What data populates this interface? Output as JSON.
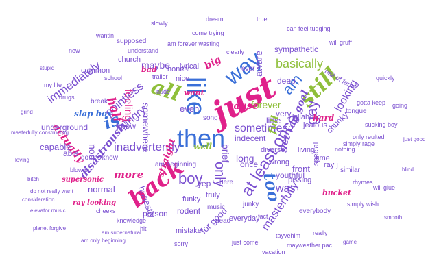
{
  "title": "",
  "words": [
    {
      "text": "just",
      "color": "#e0218a",
      "style": "c"
    },
    {
      "text": "like",
      "color": "#3a6fd8",
      "style": "s"
    },
    {
      "text": "then",
      "color": "#3a6fd8",
      "style": "s"
    },
    {
      "text": "all",
      "color": "#8fbf3a",
      "style": "c"
    },
    {
      "text": "way",
      "color": "#3a6fd8",
      "style": "s"
    },
    {
      "text": "back",
      "color": "#e0218a",
      "style": "c"
    },
    {
      "text": "still",
      "color": "#8fbf3a",
      "style": "c"
    },
    {
      "text": "at least once",
      "color": "#7a4fd0",
      "style": "s"
    },
    {
      "text": "boy",
      "color": "#7a4fd0",
      "style": "s"
    },
    {
      "text": "gay",
      "color": "#7a4fd0",
      "style": "s"
    },
    {
      "text": "only",
      "color": "#7a4fd0",
      "style": "s"
    },
    {
      "text": "too",
      "color": "#3a6fd8",
      "style": "c"
    },
    {
      "text": "am",
      "color": "#3a6fd8",
      "style": "s"
    },
    {
      "text": "basically",
      "color": "#8fbf3a",
      "style": "s"
    },
    {
      "text": "inadvertently",
      "color": "#7a4fd0",
      "style": "s"
    },
    {
      "text": "sometimes",
      "color": "#7a4fd0",
      "style": "s"
    },
    {
      "text": "masterfully",
      "color": "#7a4fd0",
      "style": "s"
    },
    {
      "text": "immediately",
      "color": "#7a4fd0",
      "style": "s"
    },
    {
      "text": "pointless",
      "color": "#7a4fd0",
      "style": "s"
    },
    {
      "text": "feeling",
      "color": "#e0218a",
      "style": "s"
    },
    {
      "text": "hungry",
      "color": "#7a4fd0",
      "style": "s"
    },
    {
      "text": "half",
      "color": "#e0218a",
      "style": "c"
    },
    {
      "text": "is",
      "color": "#3a6fd8",
      "style": "c"
    },
    {
      "text": "more",
      "color": "#e0218a",
      "style": "c"
    },
    {
      "text": "actually",
      "color": "#e0218a",
      "style": "c"
    },
    {
      "text": "disastrously",
      "color": "#7a4fd0",
      "style": "c"
    },
    {
      "text": "looking",
      "color": "#7a4fd0",
      "style": "s"
    },
    {
      "text": "was",
      "color": "#7a4fd0",
      "style": "s"
    },
    {
      "text": "get rag goal",
      "color": "#7a4fd0",
      "style": "c"
    },
    {
      "text": "forever",
      "color": "#8fbf3a",
      "style": "s"
    },
    {
      "text": "somewhere",
      "color": "#7a4fd0",
      "style": "s"
    },
    {
      "text": "maybe",
      "color": "#7a4fd0",
      "style": "s"
    },
    {
      "text": "for good",
      "color": "#7a4fd0",
      "style": "s"
    },
    {
      "text": "honestly",
      "color": "#7a4fd0",
      "style": "s"
    },
    {
      "text": "straight",
      "color": "#e0218a",
      "style": "c"
    },
    {
      "text": "normal",
      "color": "#7a4fd0",
      "style": "s"
    },
    {
      "text": "capable",
      "color": "#7a4fd0",
      "style": "s"
    },
    {
      "text": "underground",
      "color": "#7a4fd0",
      "style": "s"
    },
    {
      "text": "slap box",
      "color": "#3a6fd8",
      "style": "c"
    },
    {
      "text": "know",
      "color": "#7a4fd0",
      "style": "s"
    },
    {
      "text": "nod",
      "color": "#7a4fd0",
      "style": "s"
    },
    {
      "text": "able",
      "color": "#7a4fd0",
      "style": "s"
    },
    {
      "text": "even",
      "color": "#7a4fd0",
      "style": "s"
    },
    {
      "text": "person",
      "color": "#7a4fd0",
      "style": "s"
    },
    {
      "text": "youthful",
      "color": "#7a4fd0",
      "style": "s"
    },
    {
      "text": "front",
      "color": "#7a4fd0",
      "style": "s"
    },
    {
      "text": "indecent",
      "color": "#7a4fd0",
      "style": "s"
    },
    {
      "text": "very",
      "color": "#7a4fd0",
      "style": "s"
    },
    {
      "text": "little",
      "color": "#7a4fd0",
      "style": "s"
    },
    {
      "text": "killaholic",
      "color": "#7a4fd0",
      "style": "s"
    },
    {
      "text": "chunky",
      "color": "#7a4fd0",
      "style": "s"
    },
    {
      "text": "sympathetic",
      "color": "#7a4fd0",
      "style": "s"
    },
    {
      "text": "deep",
      "color": "#7a4fd0",
      "style": "s"
    },
    {
      "text": "hall of fame",
      "color": "#7a4fd0",
      "style": "s"
    },
    {
      "text": "big",
      "color": "#e0218a",
      "style": "c"
    },
    {
      "text": "cause",
      "color": "#e0218a",
      "style": "c"
    },
    {
      "text": "aware",
      "color": "#7a4fd0",
      "style": "s"
    },
    {
      "text": "brief",
      "color": "#7a4fd0",
      "style": "s"
    },
    {
      "text": "full",
      "color": "#8fbf3a",
      "style": "c"
    },
    {
      "text": "long",
      "color": "#7a4fd0",
      "style": "s"
    },
    {
      "text": "diverse",
      "color": "#7a4fd0",
      "style": "s"
    },
    {
      "text": "truly",
      "color": "#7a4fd0",
      "style": "s"
    },
    {
      "text": "everyday",
      "color": "#7a4fd0",
      "style": "s"
    },
    {
      "text": "funky",
      "color": "#7a4fd0",
      "style": "s"
    },
    {
      "text": "rodent",
      "color": "#7a4fd0",
      "style": "s"
    },
    {
      "text": "mistake",
      "color": "#7a4fd0",
      "style": "s"
    },
    {
      "text": "wrong",
      "color": "#7a4fd0",
      "style": "s"
    },
    {
      "text": "pissing",
      "color": "#7a4fd0",
      "style": "s"
    },
    {
      "text": "living",
      "color": "#7a4fd0",
      "style": "s"
    },
    {
      "text": "special",
      "color": "#7a4fd0",
      "style": "s"
    },
    {
      "text": "jealous",
      "color": "#7a4fd0",
      "style": "s"
    },
    {
      "text": "hard",
      "color": "#e0218a",
      "style": "c"
    },
    {
      "text": "bucket",
      "color": "#e0218a",
      "style": "c"
    },
    {
      "text": "time",
      "color": "#7a4fd0",
      "style": "s"
    },
    {
      "text": "ray j",
      "color": "#7a4fd0",
      "style": "s"
    },
    {
      "text": "do not know",
      "color": "#7a4fd0",
      "style": "s"
    },
    {
      "text": "am beginning",
      "color": "#7a4fd0",
      "style": "s"
    },
    {
      "text": "supersonic",
      "color": "#e0218a",
      "style": "c"
    },
    {
      "text": "yep",
      "color": "#7a4fd0",
      "style": "s"
    },
    {
      "text": "once",
      "color": "#7a4fd0",
      "style": "s"
    },
    {
      "text": "lyrical",
      "color": "#7a4fd0",
      "style": "s"
    },
    {
      "text": "honest",
      "color": "#7a4fd0",
      "style": "s"
    },
    {
      "text": "nice",
      "color": "#7a4fd0",
      "style": "s"
    },
    {
      "text": "common",
      "color": "#7a4fd0",
      "style": "s"
    },
    {
      "text": "church",
      "color": "#7a4fd0",
      "style": "s"
    },
    {
      "text": "supposed",
      "color": "#7a4fd0",
      "style": "s"
    },
    {
      "text": "song",
      "color": "#7a4fd0",
      "style": "s"
    },
    {
      "text": "well",
      "color": "#8fbf3a",
      "style": "c"
    },
    {
      "text": "tongue",
      "color": "#7a4fd0",
      "style": "s"
    },
    {
      "text": "break",
      "color": "#7a4fd0",
      "style": "s"
    },
    {
      "text": "bad",
      "color": "#e0218a",
      "style": "c"
    },
    {
      "text": "want",
      "color": "#e0218a",
      "style": "c"
    },
    {
      "text": "here",
      "color": "#7a4fd0",
      "style": "s"
    },
    {
      "text": "music",
      "color": "#7a4fd0",
      "style": "s"
    },
    {
      "text": "dead",
      "color": "#7a4fd0",
      "style": "s"
    },
    {
      "text": "junky",
      "color": "#7a4fd0",
      "style": "s"
    },
    {
      "text": "everybody",
      "color": "#7a4fd0",
      "style": "s"
    },
    {
      "text": "similar",
      "color": "#7a4fd0",
      "style": "s"
    },
    {
      "text": "gotta keep",
      "color": "#7a4fd0",
      "style": "s"
    },
    {
      "text": "can feel tugging",
      "color": "#7a4fd0",
      "style": "s"
    },
    {
      "text": "come trying",
      "color": "#7a4fd0",
      "style": "s"
    },
    {
      "text": "understand",
      "color": "#7a4fd0",
      "style": "s"
    },
    {
      "text": "am forever wasting",
      "color": "#7a4fd0",
      "style": "s"
    },
    {
      "text": "will gruff",
      "color": "#7a4fd0",
      "style": "s"
    },
    {
      "text": "blow up",
      "color": "#7a4fd0",
      "style": "s"
    },
    {
      "text": "cheeks",
      "color": "#7a4fd0",
      "style": "s"
    },
    {
      "text": "fact",
      "color": "#7a4fd0",
      "style": "s"
    },
    {
      "text": "trailer",
      "color": "#7a4fd0",
      "style": "s"
    },
    {
      "text": "school",
      "color": "#7a4fd0",
      "style": "s"
    },
    {
      "text": "my life",
      "color": "#7a4fd0",
      "style": "s"
    },
    {
      "text": "nothing",
      "color": "#7a4fd0",
      "style": "s"
    },
    {
      "text": "only reulted",
      "color": "#7a4fd0",
      "style": "s"
    },
    {
      "text": "simply rage",
      "color": "#7a4fd0",
      "style": "s"
    },
    {
      "text": "rhymes",
      "color": "#7a4fd0",
      "style": "s"
    },
    {
      "text": "simply wish",
      "color": "#7a4fd0",
      "style": "s"
    },
    {
      "text": "masterfully constructing",
      "color": "#7a4fd0",
      "style": "s"
    },
    {
      "text": "will glue",
      "color": "#7a4fd0",
      "style": "s"
    },
    {
      "text": "mayweather pac",
      "color": "#7a4fd0",
      "style": "s"
    },
    {
      "text": "vacation",
      "color": "#7a4fd0",
      "style": "s"
    },
    {
      "text": "just come",
      "color": "#7a4fd0",
      "style": "s"
    },
    {
      "text": "really",
      "color": "#7a4fd0",
      "style": "s"
    },
    {
      "text": "tayvehim",
      "color": "#7a4fd0",
      "style": "s"
    },
    {
      "text": "ray looking",
      "color": "#e0218a",
      "style": "c"
    },
    {
      "text": "elevator music",
      "color": "#7a4fd0",
      "style": "s"
    },
    {
      "text": "planet forgive",
      "color": "#7a4fd0",
      "style": "s"
    },
    {
      "text": "am supernatural",
      "color": "#7a4fd0",
      "style": "s"
    },
    {
      "text": "am only beginning",
      "color": "#7a4fd0",
      "style": "s"
    },
    {
      "text": "knowledge",
      "color": "#7a4fd0",
      "style": "s"
    },
    {
      "text": "hit",
      "color": "#7a4fd0",
      "style": "s"
    },
    {
      "text": "sorry",
      "color": "#7a4fd0",
      "style": "s"
    },
    {
      "text": "consideration",
      "color": "#7a4fd0",
      "style": "s"
    },
    {
      "text": "do not really want",
      "color": "#7a4fd0",
      "style": "s"
    },
    {
      "text": "nude",
      "color": "#7a4fd0",
      "style": "s"
    },
    {
      "text": "drugs",
      "color": "#7a4fd0",
      "style": "s"
    },
    {
      "text": "clearly",
      "color": "#7a4fd0",
      "style": "s"
    },
    {
      "text": "ever",
      "color": "#7a4fd0",
      "style": "s"
    },
    {
      "text": "dream",
      "color": "#7a4fd0",
      "style": "s"
    },
    {
      "text": "slowly",
      "color": "#7a4fd0",
      "style": "s"
    },
    {
      "text": "true",
      "color": "#7a4fd0",
      "style": "s"
    },
    {
      "text": "wantin",
      "color": "#7a4fd0",
      "style": "s"
    },
    {
      "text": "new",
      "color": "#7a4fd0",
      "style": "s"
    },
    {
      "text": "quickly",
      "color": "#7a4fd0",
      "style": "s"
    },
    {
      "text": "going",
      "color": "#7a4fd0",
      "style": "s"
    },
    {
      "text": "sucking boy",
      "color": "#7a4fd0",
      "style": "s"
    },
    {
      "text": "just good",
      "color": "#7a4fd0",
      "style": "s"
    },
    {
      "text": "blind",
      "color": "#7a4fd0",
      "style": "s"
    },
    {
      "text": "smooth",
      "color": "#7a4fd0",
      "style": "s"
    },
    {
      "text": "game",
      "color": "#7a4fd0",
      "style": "s"
    },
    {
      "text": "loving",
      "color": "#7a4fd0",
      "style": "s"
    },
    {
      "text": "grind",
      "color": "#7a4fd0",
      "style": "s"
    },
    {
      "text": "stupid",
      "color": "#7a4fd0",
      "style": "s"
    },
    {
      "text": "bitch",
      "color": "#7a4fd0",
      "style": "s"
    }
  ]
}
